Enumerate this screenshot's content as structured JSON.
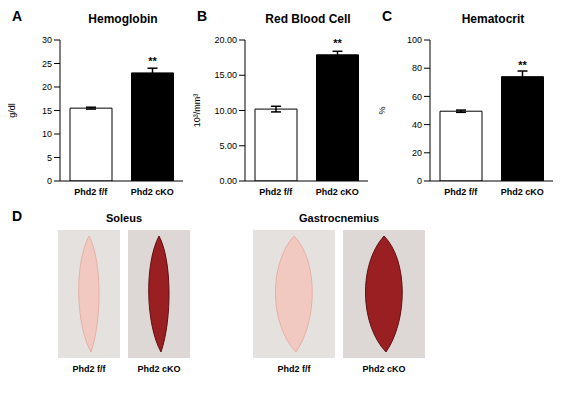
{
  "chart_data": [
    {
      "type": "bar",
      "panel": "A",
      "title": "Hemoglobin",
      "y_label": "g/dl",
      "categories": [
        "Phd2 f/f",
        "Phd2 cKO"
      ],
      "values": [
        15.5,
        23
      ],
      "errors": [
        0.2,
        1.0
      ],
      "significance": [
        null,
        "**"
      ],
      "colors": [
        "#ffffff",
        "#000000"
      ],
      "ylim": [
        0,
        30
      ],
      "yticks": [
        0,
        5,
        10,
        15,
        20,
        25,
        30
      ],
      "grid": false
    },
    {
      "type": "bar",
      "panel": "B",
      "title": "Red Blood Cell",
      "y_label": "10³/mm³",
      "categories": [
        "Phd2 f/f",
        "Phd2 cKO"
      ],
      "values": [
        10.2,
        17.9
      ],
      "errors": [
        0.4,
        0.5
      ],
      "significance": [
        null,
        "**"
      ],
      "colors": [
        "#ffffff",
        "#000000"
      ],
      "ylim": [
        0,
        20
      ],
      "yticks": [
        {
          "value": 0,
          "label": "0.00"
        },
        {
          "value": 5,
          "label": "5.00"
        },
        {
          "value": 10,
          "label": "10.00"
        },
        {
          "value": 15,
          "label": "15.00"
        },
        {
          "value": 20,
          "label": "20.00"
        }
      ],
      "grid": false
    },
    {
      "type": "bar",
      "panel": "C",
      "title": "Hematocrit",
      "y_label": "%",
      "categories": [
        "Phd2 f/f",
        "Phd2 cKO"
      ],
      "values": [
        49.5,
        74
      ],
      "errors": [
        0.8,
        4
      ],
      "significance": [
        null,
        "**"
      ],
      "colors": [
        "#ffffff",
        "#000000"
      ],
      "ylim": [
        0,
        100
      ],
      "yticks": [
        0,
        20,
        40,
        60,
        80,
        100
      ],
      "grid": false
    }
  ],
  "panel_d": {
    "panel": "D",
    "groups": [
      {
        "title": "Soleus",
        "samples": [
          "Phd2 f/f",
          "Phd2 cKO"
        ]
      },
      {
        "title": "Gastrocnemius",
        "samples": [
          "Phd2 f/f",
          "Phd2 cKO"
        ]
      }
    ]
  }
}
